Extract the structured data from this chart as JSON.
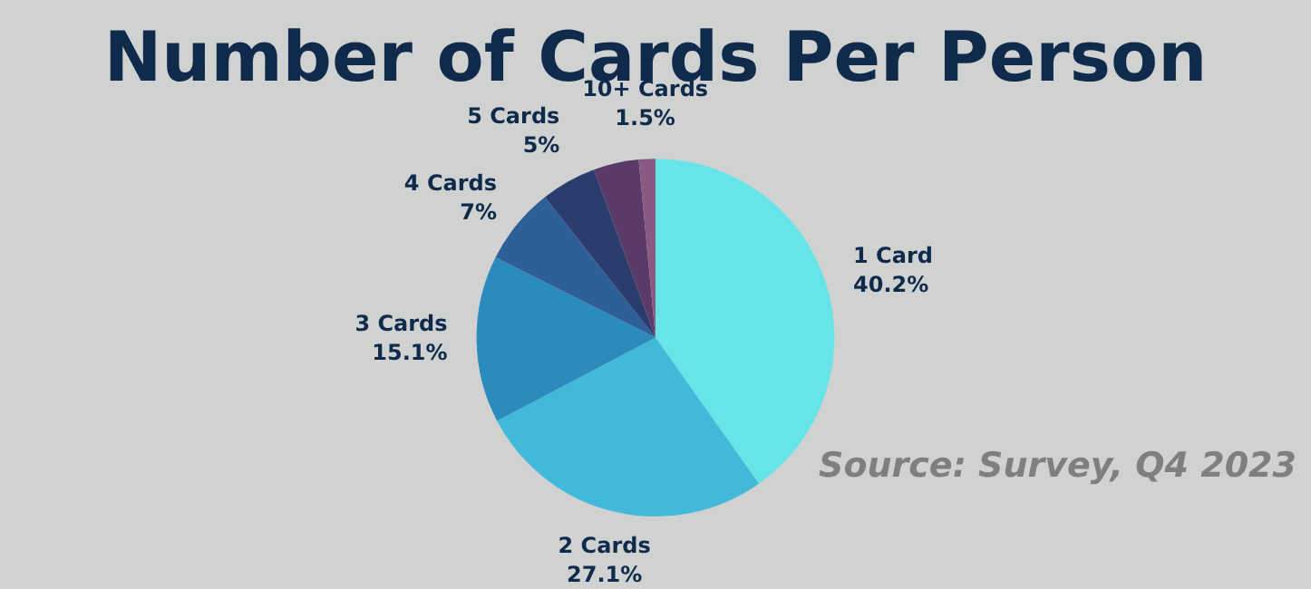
{
  "chart_data": {
    "type": "pie",
    "title": "Number of Cards Per Person",
    "categories": [
      "1 Card",
      "2 Cards",
      "3 Cards",
      "4 Cards",
      "5 Cards",
      null,
      "10+ Cards"
    ],
    "values": [
      40.2,
      27.1,
      15.1,
      7,
      5,
      4.1,
      1.5
    ],
    "value_labels": [
      "40.2%",
      "27.1%",
      "15.1%",
      "7%",
      "5%",
      null,
      "1.5%"
    ],
    "colors": [
      "#67e4e8",
      "#43b9d9",
      "#2b8bbd",
      "#2e5f99",
      "#2b3d6d",
      "#5a3a68",
      "#8a5a82"
    ],
    "annotations": [
      "Source: Survey, Q4 2023"
    ],
    "legend": false
  }
}
